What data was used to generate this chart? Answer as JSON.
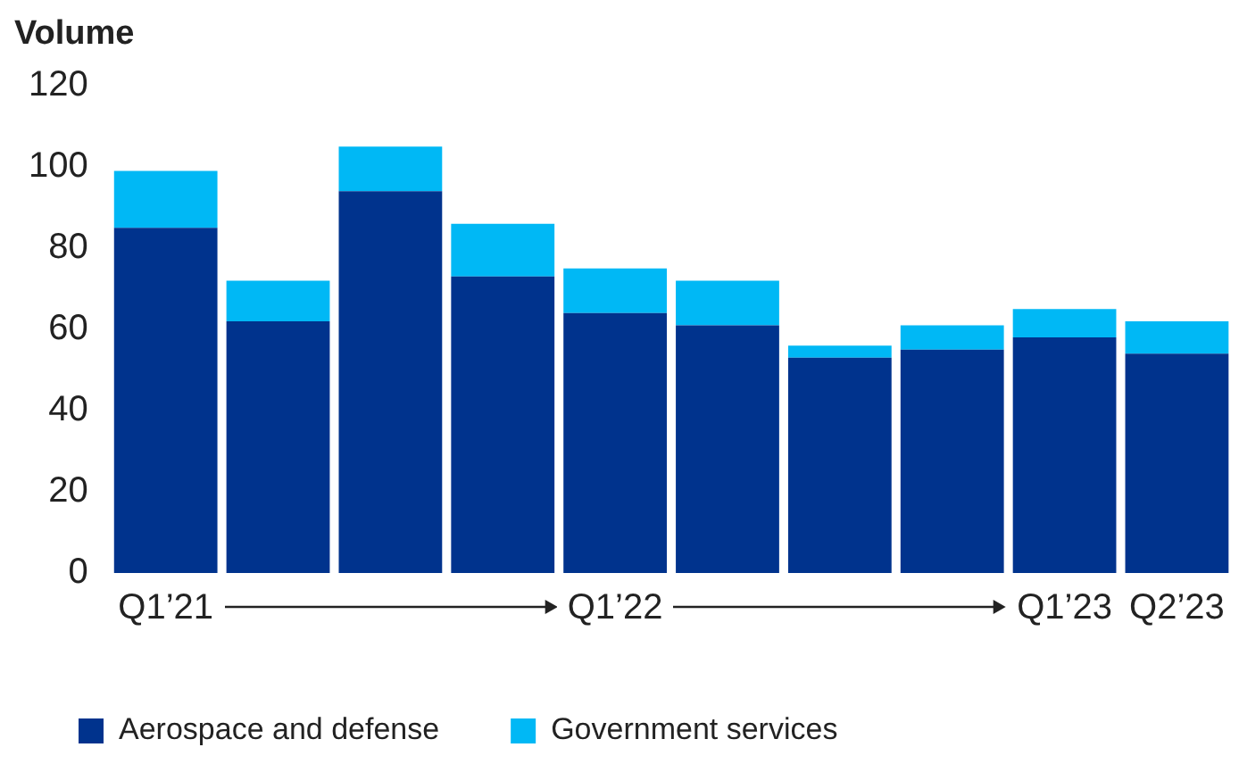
{
  "chart_data": {
    "type": "bar",
    "ylabel": "Volume",
    "stacked": true,
    "categories": [
      "Q1’21",
      null,
      null,
      null,
      "Q1’22",
      null,
      null,
      null,
      "Q1’23",
      "Q2’23"
    ],
    "series": [
      {
        "name": "Aerospace and defense",
        "color": "#00338d",
        "values": [
          85,
          62,
          94,
          73,
          64,
          61,
          53,
          55,
          58,
          54
        ]
      },
      {
        "name": "Government services",
        "color": "#00b8f5",
        "values": [
          14,
          10,
          11,
          13,
          11,
          11,
          3,
          6,
          7,
          8
        ]
      }
    ],
    "ylim": [
      0,
      120
    ],
    "yticks": [
      0,
      20,
      40,
      60,
      80,
      100,
      120
    ],
    "grid": false,
    "legend": "bottom left"
  }
}
